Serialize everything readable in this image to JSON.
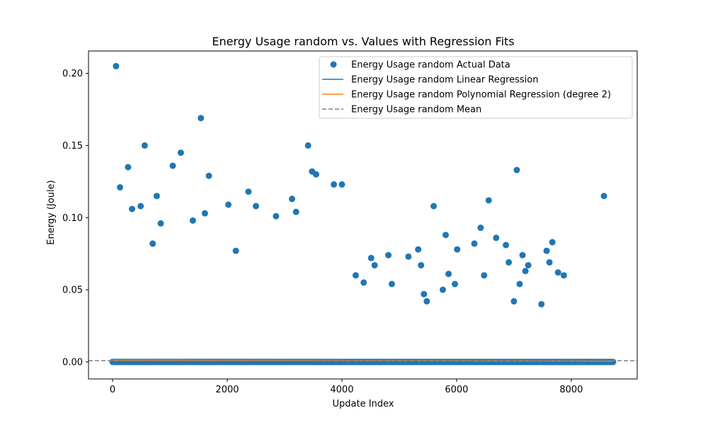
{
  "chart_data": {
    "type": "scatter",
    "title": "Energy Usage random vs. Values with Regression Fits",
    "xlabel": "Update Index",
    "ylabel": "Energy (Joule)",
    "xlim": [
      -420,
      9150
    ],
    "ylim": [
      -0.0118,
      0.2155
    ],
    "xticks": [
      0,
      2000,
      4000,
      6000,
      8000
    ],
    "xtick_labels": [
      "0",
      "2000",
      "4000",
      "6000",
      "8000"
    ],
    "yticks": [
      0.0,
      0.05,
      0.1,
      0.15,
      0.2
    ],
    "ytick_labels": [
      "0.00",
      "0.05",
      "0.10",
      "0.15",
      "0.20"
    ],
    "grid": false,
    "legend_position": "top-right",
    "colors": {
      "scatter": "#1f77b4",
      "linear": "#1f77b4",
      "poly": "#ff7f0e",
      "mean": "#808080"
    },
    "baseline": {
      "x_start": 0,
      "x_end": 8730,
      "y": 0.0
    },
    "series": [
      {
        "name": "Energy Usage random Actual Data",
        "kind": "scatter",
        "points": [
          [
            60,
            0.205
          ],
          [
            130,
            0.121
          ],
          [
            270,
            0.135
          ],
          [
            340,
            0.106
          ],
          [
            490,
            0.108
          ],
          [
            560,
            0.15
          ],
          [
            700,
            0.082
          ],
          [
            770,
            0.115
          ],
          [
            840,
            0.096
          ],
          [
            1050,
            0.136
          ],
          [
            1190,
            0.145
          ],
          [
            1400,
            0.098
          ],
          [
            1540,
            0.169
          ],
          [
            1610,
            0.103
          ],
          [
            1680,
            0.129
          ],
          [
            2020,
            0.109
          ],
          [
            2150,
            0.077
          ],
          [
            2370,
            0.118
          ],
          [
            2500,
            0.108
          ],
          [
            2850,
            0.101
          ],
          [
            3130,
            0.113
          ],
          [
            3200,
            0.104
          ],
          [
            3410,
            0.15
          ],
          [
            3480,
            0.132
          ],
          [
            3550,
            0.13
          ],
          [
            3860,
            0.123
          ],
          [
            4000,
            0.123
          ],
          [
            4240,
            0.06
          ],
          [
            4380,
            0.055
          ],
          [
            4510,
            0.072
          ],
          [
            4570,
            0.067
          ],
          [
            4810,
            0.074
          ],
          [
            4870,
            0.054
          ],
          [
            5160,
            0.073
          ],
          [
            5330,
            0.078
          ],
          [
            5380,
            0.067
          ],
          [
            5430,
            0.047
          ],
          [
            5480,
            0.042
          ],
          [
            5600,
            0.108
          ],
          [
            5760,
            0.05
          ],
          [
            5810,
            0.088
          ],
          [
            5860,
            0.061
          ],
          [
            5970,
            0.054
          ],
          [
            6010,
            0.078
          ],
          [
            6310,
            0.082
          ],
          [
            6420,
            0.093
          ],
          [
            6480,
            0.06
          ],
          [
            6560,
            0.112
          ],
          [
            6690,
            0.086
          ],
          [
            6860,
            0.081
          ],
          [
            6910,
            0.069
          ],
          [
            7000,
            0.042
          ],
          [
            7050,
            0.133
          ],
          [
            7100,
            0.054
          ],
          [
            7150,
            0.074
          ],
          [
            7200,
            0.063
          ],
          [
            7250,
            0.067
          ],
          [
            7480,
            0.04
          ],
          [
            7570,
            0.077
          ],
          [
            7620,
            0.069
          ],
          [
            7670,
            0.083
          ],
          [
            7770,
            0.062
          ],
          [
            7870,
            0.06
          ],
          [
            8570,
            0.115
          ]
        ]
      },
      {
        "name": "Energy Usage random Linear Regression",
        "kind": "line",
        "x": [
          0,
          8730
        ],
        "y": [
          0.0011,
          0.0006
        ]
      },
      {
        "name": "Energy Usage random Polynomial Regression (degree 2)",
        "kind": "line",
        "x": [
          0,
          1500,
          3000,
          4500,
          6000,
          7500,
          8730
        ],
        "y": [
          0.0012,
          0.0011,
          0.001,
          0.0009,
          0.0008,
          0.0007,
          0.0006
        ]
      },
      {
        "name": "Energy Usage random Mean",
        "kind": "hline",
        "y": 0.00085
      }
    ]
  }
}
